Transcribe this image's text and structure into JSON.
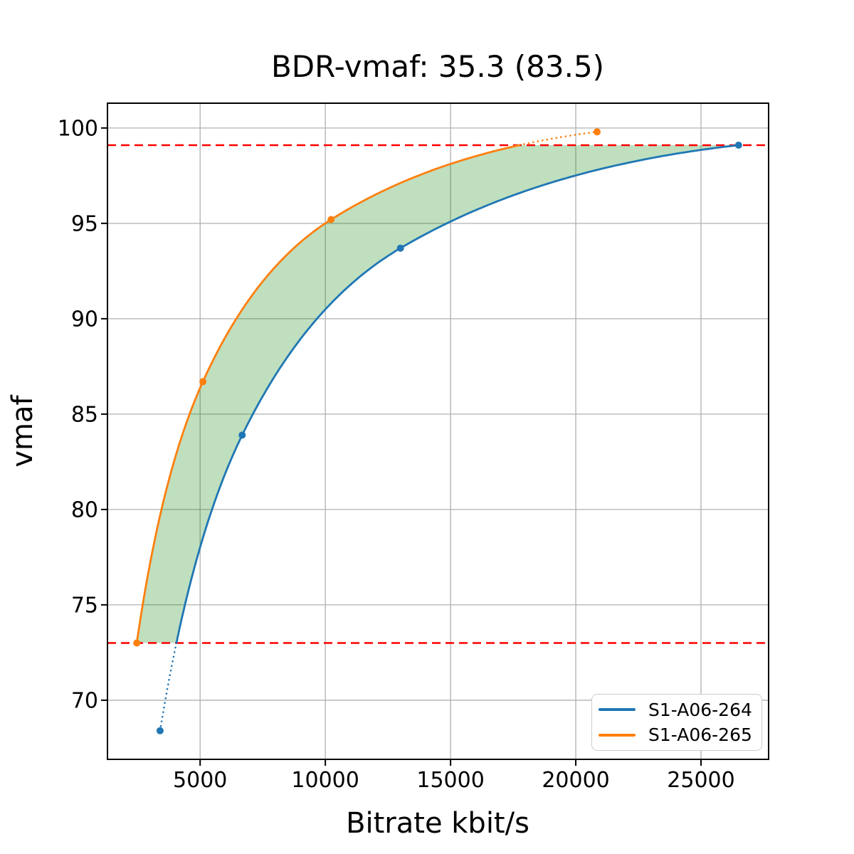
{
  "chart_data": {
    "type": "line",
    "title": "BDR-vmaf: 35.3 (83.5)",
    "xlabel": "Bitrate kbit/s",
    "ylabel": "vmaf",
    "xlim": [
      1300,
      27700
    ],
    "ylim": [
      66.9,
      101.3
    ],
    "xticks": [
      5000,
      10000,
      15000,
      20000,
      25000
    ],
    "yticks": [
      70,
      75,
      80,
      85,
      90,
      95,
      100
    ],
    "grid": true,
    "legend_position": "lower right",
    "series": [
      {
        "name": "S1-A06-264",
        "color": "#1f77b4",
        "points_bitrate_vmaf": [
          [
            3400,
            68.4
          ],
          [
            6680,
            83.9
          ],
          [
            13000,
            93.7
          ],
          [
            26500,
            99.1
          ]
        ]
      },
      {
        "name": "S1-A06-265",
        "color": "#ff7f0e",
        "points_bitrate_vmaf": [
          [
            2470,
            73.0
          ],
          [
            5110,
            86.7
          ],
          [
            10230,
            95.2
          ],
          [
            20850,
            99.8
          ]
        ]
      }
    ],
    "overlap_vmaf_interval": [
      73.0,
      99.1
    ],
    "hlines": {
      "values": [
        73.0,
        99.1
      ],
      "color": "#ff0000",
      "style": "dashed"
    },
    "shaded_region": {
      "color": "#008000",
      "alpha": 0.25
    }
  }
}
